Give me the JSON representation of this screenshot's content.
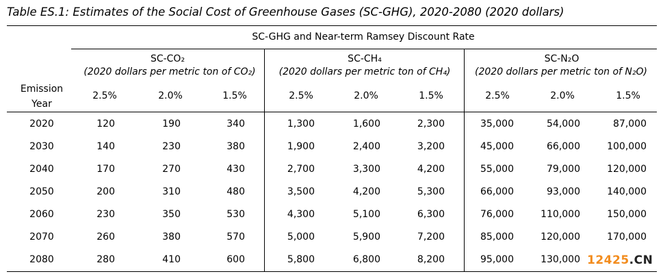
{
  "title": "Table ES.1: Estimates of the Social Cost of Greenhouse Gases (SC-GHG), 2020-2080 (2020 dollars)",
  "header": {
    "super": "SC-GHG and Near-term Ramsey Discount Rate",
    "row_label_line1": "Emission",
    "row_label_line2": "Year",
    "groups": [
      {
        "name": "SC-CO₂",
        "unit": "(2020 dollars per metric ton of CO₂)"
      },
      {
        "name": "SC-CH₄",
        "unit": "(2020 dollars per metric ton of CH₄)"
      },
      {
        "name": "SC-N₂O",
        "unit": "(2020 dollars per metric ton of N₂O)"
      }
    ],
    "rates": [
      "2.5%",
      "2.0%",
      "1.5%",
      "2.5%",
      "2.0%",
      "1.5%",
      "2.5%",
      "2.0%",
      "1.5%"
    ]
  },
  "rows": [
    {
      "year": "2020",
      "values": [
        "120",
        "190",
        "340",
        "1,300",
        "1,600",
        "2,300",
        "35,000",
        "54,000",
        "87,000"
      ]
    },
    {
      "year": "2030",
      "values": [
        "140",
        "230",
        "380",
        "1,900",
        "2,400",
        "3,200",
        "45,000",
        "66,000",
        "100,000"
      ]
    },
    {
      "year": "2040",
      "values": [
        "170",
        "270",
        "430",
        "2,700",
        "3,300",
        "4,200",
        "55,000",
        "79,000",
        "120,000"
      ]
    },
    {
      "year": "2050",
      "values": [
        "200",
        "310",
        "480",
        "3,500",
        "4,200",
        "5,300",
        "66,000",
        "93,000",
        "140,000"
      ]
    },
    {
      "year": "2060",
      "values": [
        "230",
        "350",
        "530",
        "4,300",
        "5,100",
        "6,300",
        "76,000",
        "110,000",
        "150,000"
      ]
    },
    {
      "year": "2070",
      "values": [
        "260",
        "380",
        "570",
        "5,000",
        "5,900",
        "7,200",
        "85,000",
        "120,000",
        "170,000"
      ]
    },
    {
      "year": "2080",
      "values": [
        "280",
        "410",
        "600",
        "5,800",
        "6,800",
        "8,200",
        "95,000",
        "130,000",
        ""
      ]
    }
  ],
  "watermark": {
    "number": "12425",
    "domain": ".CN"
  }
}
